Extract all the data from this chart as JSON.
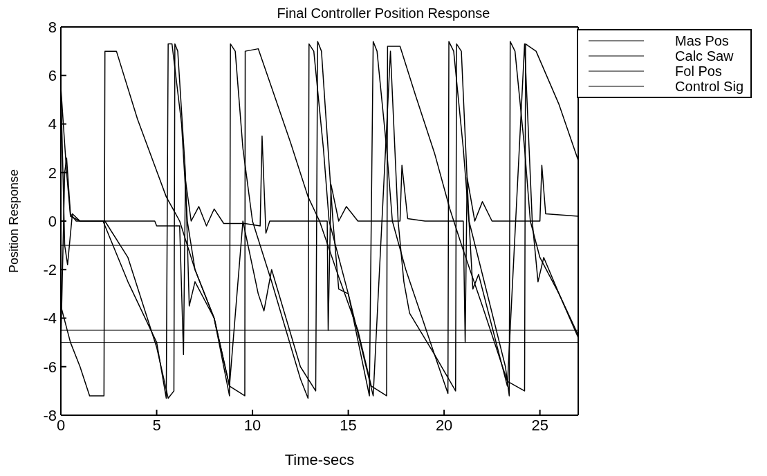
{
  "chart_data": {
    "type": "line",
    "title": "Final Controller Position Response",
    "xlabel": "Time-secs",
    "ylabel": "Position Response",
    "xlim": [
      0,
      27
    ],
    "xticks": [
      0,
      5,
      10,
      15,
      20,
      25
    ],
    "ylim": [
      -8,
      8
    ],
    "yticks": [
      -8,
      -6,
      -4,
      -2,
      0,
      2,
      4,
      6,
      8
    ],
    "grid": false,
    "legend": "top right",
    "marker": "none",
    "line_style": "solid",
    "ref_lines": [
      {
        "axis": "y",
        "value": -1,
        "color": "#000000"
      },
      {
        "axis": "y",
        "value": -4.5,
        "color": "#000000"
      },
      {
        "axis": "y",
        "value": -5,
        "color": "#000000"
      }
    ],
    "series": [
      {
        "name": "Mas Pos",
        "color": "#000000",
        "x": [
          0,
          0.5,
          1,
          1.5,
          2.25,
          2.3,
          2.9,
          4,
          5.5,
          6.2,
          7,
          8,
          8.8,
          9.6,
          9.62,
          10.3,
          11,
          12,
          12.9,
          13.5,
          14.5,
          15.5,
          16.2,
          17,
          17.05,
          17.7,
          18.5,
          19.5,
          20.3,
          21,
          22,
          23.3,
          24.2,
          24.25,
          24.8,
          26,
          27
        ],
        "values": [
          -3.5,
          -5,
          -6,
          -7.2,
          -7.2,
          7,
          7,
          4.2,
          1,
          0,
          -2,
          -4,
          -6.8,
          -7.2,
          7,
          7.1,
          5.5,
          3.2,
          1,
          0,
          -2.3,
          -4.5,
          -6.8,
          -7.2,
          7.2,
          7.2,
          5.2,
          2.8,
          0.5,
          -1.2,
          -3.5,
          -6.6,
          -7,
          7.3,
          7,
          4.8,
          2.5
        ]
      },
      {
        "name": "Calc Saw",
        "color": "#000000",
        "x": [
          0,
          0.3,
          0.5,
          1,
          2.2,
          3.5,
          5,
          5.5,
          5.6,
          5.8,
          6.3,
          6.6,
          7,
          8,
          8.8,
          8.85,
          9.1,
          9.5,
          10,
          11,
          12.5,
          12.9,
          12.95,
          13.2,
          13.7,
          14,
          15,
          16.1,
          16.3,
          16.5,
          17,
          17.3,
          18,
          19.5,
          20.2,
          20.25,
          20.5,
          21,
          21.3,
          22,
          23.2,
          23.4,
          23.45,
          23.7,
          24.2,
          24.5,
          25,
          26,
          27
        ],
        "values": [
          5.5,
          2,
          0.2,
          0,
          0,
          -2.5,
          -5,
          -7.3,
          7.3,
          7.3,
          4,
          0,
          -2,
          -4,
          -7.2,
          7.3,
          7,
          3,
          0,
          -2.5,
          -6.5,
          -7.3,
          7.3,
          7,
          3,
          0,
          -3,
          -7.2,
          7.4,
          7,
          3,
          0,
          -2,
          -5.5,
          -7.1,
          7.4,
          7,
          3,
          0,
          -2.2,
          -6,
          -7.2,
          7.4,
          7,
          3,
          0,
          -1.5,
          -3,
          -4.8
        ]
      },
      {
        "name": "Fol Pos",
        "color": "#000000",
        "x": [
          0,
          0.2,
          0.35,
          0.6,
          1,
          2.3,
          3.5,
          5,
          5.6,
          5.9,
          5.95,
          6.1,
          6.5,
          6.7,
          7,
          8,
          8.8,
          9.5,
          10.3,
          10.6,
          11,
          12.5,
          13.3,
          13.4,
          13.6,
          14.2,
          14.5,
          15,
          16.3,
          17.2,
          17.6,
          17.9,
          18.2,
          19.5,
          20.6,
          20.65,
          20.9,
          21.3,
          21.5,
          21.8,
          23.3,
          24.2,
          24.6,
          24.9,
          25.2,
          26,
          27
        ],
        "values": [
          5.5,
          -1,
          -1.8,
          0.3,
          0,
          0,
          -1.5,
          -5.2,
          -7.3,
          -7,
          7.3,
          7,
          2,
          -3.5,
          -2.5,
          -4,
          -6.8,
          0,
          -3,
          -3.7,
          -2,
          -6,
          -7,
          7.4,
          7,
          0,
          -2.8,
          -3,
          -7.2,
          7,
          0,
          -2.5,
          -3.8,
          -5.5,
          -7,
          7.3,
          7,
          0,
          -2.8,
          -2.2,
          -6.8,
          7.3,
          0,
          -2.5,
          -1.5,
          -3,
          -4.7
        ]
      },
      {
        "name": "Control Sig",
        "color": "#000000",
        "x": [
          0,
          0.2,
          0.3,
          0.5,
          0.8,
          2.3,
          3,
          4.9,
          5,
          6.2,
          6.4,
          6.5,
          6.8,
          7.2,
          7.6,
          8,
          8.5,
          9.6,
          10.4,
          10.5,
          10.7,
          10.9,
          12,
          13.9,
          13.95,
          14.1,
          14.5,
          14.9,
          15.5,
          17.7,
          17.8,
          18.1,
          19,
          21,
          21.1,
          21.2,
          21.6,
          22,
          22.5,
          25,
          25.1,
          25.3,
          27
        ],
        "values": [
          -5,
          2,
          2.6,
          0.3,
          0,
          0,
          0,
          0,
          -0.2,
          -0.2,
          -5.5,
          1.7,
          0,
          0.6,
          -0.2,
          0.5,
          -0.1,
          -0.1,
          -0.2,
          3.5,
          -0.5,
          0,
          0,
          0,
          -4.5,
          1.5,
          0,
          0.6,
          0,
          0,
          2.3,
          0.1,
          0,
          0,
          -5,
          1.8,
          0,
          0.8,
          0,
          0,
          2.3,
          0.3,
          0.2
        ]
      }
    ]
  }
}
